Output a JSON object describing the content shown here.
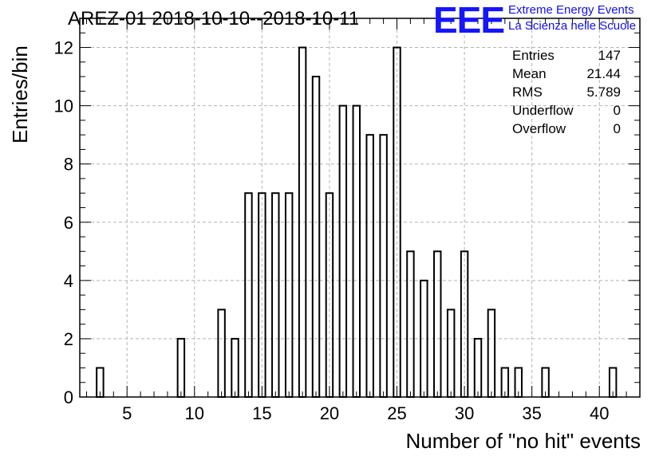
{
  "title": "AREZ-01 2018-10-10--2018-10-11",
  "logo": {
    "mark": "EEE",
    "line1": "Extreme Energy Events",
    "line2": "La Scienza nelle Scuole"
  },
  "stats": [
    {
      "label": "Entries",
      "value": "147"
    },
    {
      "label": "Mean",
      "value": "21.44"
    },
    {
      "label": "RMS",
      "value": "5.789"
    },
    {
      "label": "Underflow",
      "value": "0"
    },
    {
      "label": "Overflow",
      "value": "0"
    }
  ],
  "chart_data": {
    "type": "bar",
    "title": "AREZ-01 2018-10-10--2018-10-11",
    "xlabel": "Number of \"no hit\" events",
    "ylabel": "Entries/bin",
    "xlim": [
      1.5,
      43.0
    ],
    "ylim": [
      0,
      13
    ],
    "x_ticks": [
      5,
      10,
      15,
      20,
      25,
      30,
      35,
      40
    ],
    "y_ticks": [
      0,
      2,
      4,
      6,
      8,
      10,
      12
    ],
    "bin_width": 0.5,
    "grid": true,
    "bins": [
      {
        "x": 3,
        "count": 1
      },
      {
        "x": 9,
        "count": 2
      },
      {
        "x": 12,
        "count": 3
      },
      {
        "x": 13,
        "count": 2
      },
      {
        "x": 14,
        "count": 7
      },
      {
        "x": 15,
        "count": 7
      },
      {
        "x": 16,
        "count": 7
      },
      {
        "x": 17,
        "count": 7
      },
      {
        "x": 18,
        "count": 12
      },
      {
        "x": 19,
        "count": 11
      },
      {
        "x": 20,
        "count": 7
      },
      {
        "x": 21,
        "count": 10
      },
      {
        "x": 22,
        "count": 10
      },
      {
        "x": 23,
        "count": 9
      },
      {
        "x": 24,
        "count": 9
      },
      {
        "x": 25,
        "count": 12
      },
      {
        "x": 26,
        "count": 5
      },
      {
        "x": 27,
        "count": 4
      },
      {
        "x": 28,
        "count": 5
      },
      {
        "x": 29,
        "count": 3
      },
      {
        "x": 30,
        "count": 5
      },
      {
        "x": 31,
        "count": 2
      },
      {
        "x": 32,
        "count": 3
      },
      {
        "x": 33,
        "count": 1
      },
      {
        "x": 34,
        "count": 1
      },
      {
        "x": 36,
        "count": 1
      },
      {
        "x": 41,
        "count": 1
      }
    ]
  }
}
